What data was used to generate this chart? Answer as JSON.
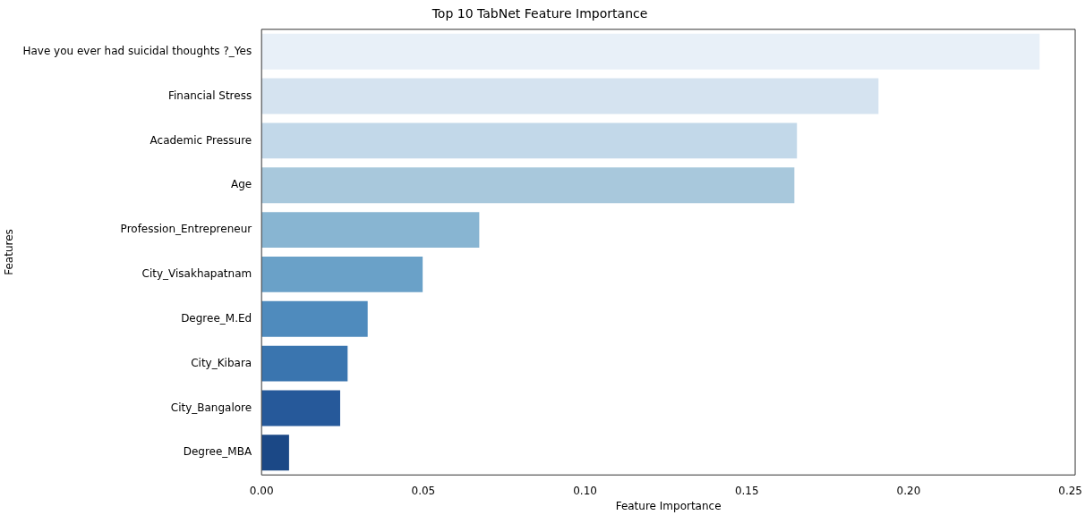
{
  "chart_data": {
    "type": "bar",
    "orientation": "horizontal",
    "title": "Top 10 TabNet Feature Importance",
    "xlabel": "Feature Importance",
    "ylabel": "Features",
    "categories": [
      "Have you ever had suicidal thoughts ?_Yes",
      "Financial Stress",
      "Academic Pressure",
      "Age",
      "Profession_Entrepreneur",
      "City_Visakhapatnam",
      "Degree_M.Ed",
      "City_Kibara",
      "City_Bangalore",
      "Degree_MBA"
    ],
    "values": [
      0.2405,
      0.1907,
      0.1655,
      0.1647,
      0.0673,
      0.0498,
      0.0328,
      0.0266,
      0.0243,
      0.0085
    ],
    "colors": [
      "#e8f0f8",
      "#d5e3f0",
      "#c2d8e9",
      "#a8c8dc",
      "#88b5d2",
      "#6aa1c8",
      "#4f8bbd",
      "#3a75af",
      "#26599a",
      "#1b4886"
    ],
    "xlim": [
      0,
      0.2515
    ],
    "xticks": [
      {
        "value": 0,
        "label": "0.00"
      },
      {
        "value": 0.05,
        "label": "0.05"
      },
      {
        "value": 0.1,
        "label": "0.10"
      },
      {
        "value": 0.15,
        "label": "0.15"
      },
      {
        "value": 0.2,
        "label": "0.20"
      },
      {
        "value": 0.25,
        "label": "0.25"
      }
    ],
    "grid": false,
    "legend": false
  }
}
